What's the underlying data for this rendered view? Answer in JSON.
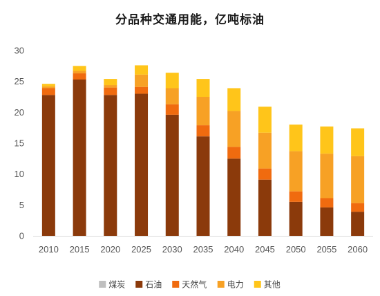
{
  "chart_data": {
    "type": "bar",
    "stacked": true,
    "title": "分品种交通用能，亿吨标油",
    "xlabel": "",
    "ylabel": "",
    "categories": [
      "2010",
      "2015",
      "2020",
      "2025",
      "2030",
      "2035",
      "2040",
      "2045",
      "2050",
      "2055",
      "2060"
    ],
    "ylim": [
      0,
      30
    ],
    "yticks": [
      0,
      5,
      10,
      15,
      20,
      25,
      30
    ],
    "grid": false,
    "legend_position": "bottom",
    "series": [
      {
        "name": "煤炭",
        "color": "#bfbfbf",
        "values": [
          0,
          0,
          0,
          0,
          0,
          0,
          0,
          0,
          0,
          0,
          0
        ]
      },
      {
        "name": "石油",
        "color": "#8b3a0b",
        "values": [
          22.8,
          25.3,
          22.8,
          23.0,
          19.6,
          16.1,
          12.5,
          9.1,
          5.5,
          4.6,
          3.9
        ]
      },
      {
        "name": "天然气",
        "color": "#f06b0f",
        "values": [
          1.1,
          1.0,
          1.2,
          1.1,
          1.7,
          1.8,
          1.9,
          1.8,
          1.7,
          1.5,
          1.4
        ]
      },
      {
        "name": "电力",
        "color": "#f7a125",
        "values": [
          0.3,
          0.4,
          0.4,
          2.0,
          2.6,
          4.6,
          5.8,
          5.8,
          6.5,
          7.2,
          7.6
        ]
      },
      {
        "name": "其他",
        "color": "#ffc51a",
        "values": [
          0.4,
          0.8,
          1.0,
          1.5,
          2.5,
          2.9,
          3.7,
          4.2,
          4.3,
          4.4,
          4.5
        ]
      }
    ]
  }
}
